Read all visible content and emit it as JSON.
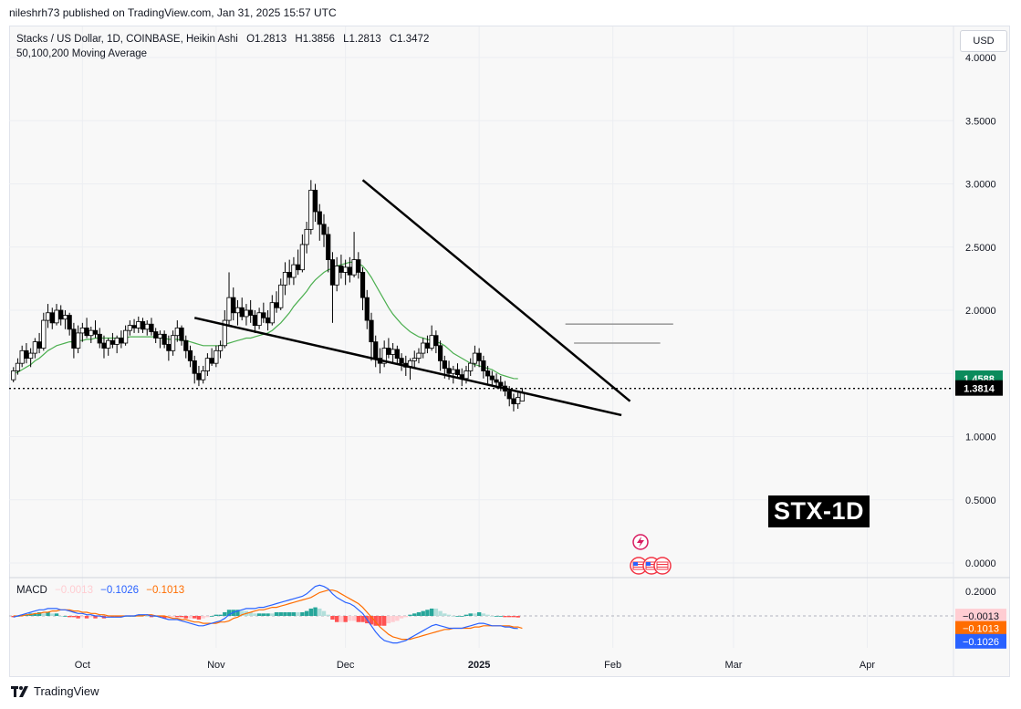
{
  "publisher_line": "nileshrh73 published on TradingView.com, Jan 31, 2025 15:57 UTC",
  "legend": {
    "symbol": "Stacks / US Dollar, 1D, COINBASE, Heikin Ashi",
    "open": "O1.2813",
    "high": "H1.3856",
    "low": "L1.2813",
    "close": "C1.3472",
    "indicator": "50,100,200 Moving Average"
  },
  "currency_button": "USD",
  "badge": "STX-1D",
  "macd_legend": {
    "label": "MACD",
    "hist": "−0.0013",
    "macd": "−0.1026",
    "signal": "−0.1013"
  },
  "footer": "TradingView",
  "colors": {
    "up": "#089981",
    "down": "#f23645",
    "ma": "#4caf50",
    "macd_line": "#2962ff",
    "signal_line": "#ff6d00",
    "hist_up": "#26a69a",
    "hist_up_light": "#b2dfdb",
    "hist_down": "#ff5252",
    "hist_down_light": "#ffcdd2",
    "ma_label": "#0b8b5c"
  },
  "chart_data": {
    "type": "candlestick",
    "title": "Stacks / US Dollar, 1D, COINBASE, Heikin Ashi",
    "price_axis": {
      "ticks": [
        "4.0000",
        "3.5000",
        "3.0000",
        "2.5000",
        "2.0000",
        "1.5000",
        "1.0000",
        "0.5000",
        "0.0000"
      ],
      "tick_values": [
        4.0,
        3.5,
        3.0,
        2.5,
        2.0,
        1.5,
        1.0,
        0.5,
        0.0
      ],
      "range": [
        -0.05,
        4.15
      ],
      "labels": {
        "ma_value": "1.4588",
        "last_price": "1.3814"
      },
      "ma_value": 1.4588,
      "last_price": 1.3814
    },
    "time_axis": {
      "labels": [
        "Oct",
        "Nov",
        "Dec",
        "2025",
        "Feb",
        "Mar",
        "Apr"
      ],
      "label_dates": [
        "2024-10-01",
        "2024-11-01",
        "2024-12-01",
        "2025-01-01",
        "2025-02-01",
        "2025-03-01",
        "2025-04-01"
      ],
      "range": [
        "2024-09-14",
        "2025-04-21"
      ]
    },
    "candles": {
      "start_date": "2024-09-15",
      "values": [
        [
          1.45,
          1.55,
          1.43,
          1.52
        ],
        [
          1.52,
          1.62,
          1.49,
          1.58
        ],
        [
          1.58,
          1.72,
          1.55,
          1.68
        ],
        [
          1.68,
          1.74,
          1.58,
          1.62
        ],
        [
          1.62,
          1.7,
          1.55,
          1.66
        ],
        [
          1.66,
          1.78,
          1.62,
          1.75
        ],
        [
          1.75,
          1.82,
          1.66,
          1.7
        ],
        [
          1.7,
          1.98,
          1.68,
          1.92
        ],
        [
          1.92,
          2.05,
          1.86,
          1.98
        ],
        [
          1.98,
          2.02,
          1.85,
          1.9
        ],
        [
          1.9,
          2.05,
          1.88,
          2.0
        ],
        [
          2.0,
          2.04,
          1.88,
          1.93
        ],
        [
          1.93,
          2.0,
          1.85,
          1.96
        ],
        [
          1.96,
          1.98,
          1.8,
          1.85
        ],
        [
          1.85,
          1.9,
          1.62,
          1.7
        ],
        [
          1.7,
          1.88,
          1.66,
          1.82
        ],
        [
          1.82,
          1.9,
          1.75,
          1.86
        ],
        [
          1.86,
          1.94,
          1.78,
          1.8
        ],
        [
          1.8,
          1.87,
          1.74,
          1.84
        ],
        [
          1.84,
          1.92,
          1.78,
          1.81
        ],
        [
          1.81,
          1.86,
          1.7,
          1.74
        ],
        [
          1.74,
          1.8,
          1.62,
          1.7
        ],
        [
          1.7,
          1.78,
          1.64,
          1.76
        ],
        [
          1.76,
          1.82,
          1.7,
          1.73
        ],
        [
          1.73,
          1.8,
          1.66,
          1.78
        ],
        [
          1.78,
          1.84,
          1.7,
          1.74
        ],
        [
          1.74,
          1.88,
          1.72,
          1.84
        ],
        [
          1.84,
          1.92,
          1.8,
          1.88
        ],
        [
          1.88,
          1.93,
          1.82,
          1.86
        ],
        [
          1.86,
          1.95,
          1.82,
          1.91
        ],
        [
          1.91,
          1.94,
          1.82,
          1.85
        ],
        [
          1.85,
          1.92,
          1.8,
          1.89
        ],
        [
          1.89,
          1.94,
          1.8,
          1.83
        ],
        [
          1.83,
          1.86,
          1.74,
          1.78
        ],
        [
          1.78,
          1.84,
          1.7,
          1.81
        ],
        [
          1.81,
          1.84,
          1.7,
          1.73
        ],
        [
          1.73,
          1.8,
          1.6,
          1.68
        ],
        [
          1.68,
          1.84,
          1.64,
          1.8
        ],
        [
          1.8,
          1.92,
          1.75,
          1.86
        ],
        [
          1.86,
          1.88,
          1.72,
          1.76
        ],
        [
          1.76,
          1.8,
          1.62,
          1.68
        ],
        [
          1.68,
          1.72,
          1.55,
          1.6
        ],
        [
          1.6,
          1.64,
          1.42,
          1.5
        ],
        [
          1.5,
          1.56,
          1.4,
          1.45
        ],
        [
          1.45,
          1.56,
          1.42,
          1.52
        ],
        [
          1.52,
          1.66,
          1.48,
          1.62
        ],
        [
          1.62,
          1.7,
          1.56,
          1.58
        ],
        [
          1.58,
          1.72,
          1.55,
          1.68
        ],
        [
          1.68,
          1.76,
          1.62,
          1.72
        ],
        [
          1.72,
          2.0,
          1.7,
          1.92
        ],
        [
          1.92,
          2.3,
          1.88,
          2.1
        ],
        [
          2.1,
          2.18,
          1.92,
          1.98
        ],
        [
          1.98,
          2.08,
          1.88,
          2.02
        ],
        [
          2.02,
          2.1,
          1.92,
          1.95
        ],
        [
          1.95,
          2.05,
          1.88,
          2.0
        ],
        [
          2.0,
          2.08,
          1.9,
          1.96
        ],
        [
          1.96,
          2.0,
          1.82,
          1.88
        ],
        [
          1.88,
          2.02,
          1.85,
          1.98
        ],
        [
          1.98,
          2.06,
          1.9,
          1.94
        ],
        [
          1.94,
          2.0,
          1.84,
          1.9
        ],
        [
          1.9,
          2.12,
          1.88,
          2.06
        ],
        [
          2.06,
          2.15,
          1.98,
          2.02
        ],
        [
          2.02,
          2.25,
          2.0,
          2.2
        ],
        [
          2.2,
          2.38,
          2.12,
          2.3
        ],
        [
          2.3,
          2.4,
          2.2,
          2.26
        ],
        [
          2.26,
          2.42,
          2.2,
          2.36
        ],
        [
          2.36,
          2.48,
          2.28,
          2.32
        ],
        [
          2.32,
          2.6,
          2.3,
          2.52
        ],
        [
          2.52,
          2.7,
          2.45,
          2.64
        ],
        [
          2.64,
          3.03,
          2.6,
          2.95
        ],
        [
          2.95,
          3.0,
          2.7,
          2.78
        ],
        [
          2.78,
          2.84,
          2.55,
          2.68
        ],
        [
          2.68,
          2.76,
          2.5,
          2.6
        ],
        [
          2.6,
          2.66,
          2.3,
          2.4
        ],
        [
          2.4,
          2.46,
          1.9,
          2.2
        ],
        [
          2.2,
          2.42,
          2.15,
          2.35
        ],
        [
          2.35,
          2.44,
          2.25,
          2.3
        ],
        [
          2.3,
          2.4,
          2.2,
          2.34
        ],
        [
          2.34,
          2.42,
          2.22,
          2.28
        ],
        [
          2.28,
          2.62,
          2.26,
          2.4
        ],
        [
          2.4,
          2.46,
          2.25,
          2.3
        ],
        [
          2.3,
          2.34,
          2.0,
          2.1
        ],
        [
          2.1,
          2.16,
          1.85,
          1.92
        ],
        [
          1.92,
          1.98,
          1.6,
          1.75
        ],
        [
          1.75,
          1.8,
          1.55,
          1.62
        ],
        [
          1.62,
          1.7,
          1.5,
          1.58
        ],
        [
          1.58,
          1.76,
          1.55,
          1.7
        ],
        [
          1.7,
          1.78,
          1.62,
          1.65
        ],
        [
          1.65,
          1.74,
          1.58,
          1.69
        ],
        [
          1.69,
          1.72,
          1.58,
          1.62
        ],
        [
          1.62,
          1.66,
          1.52,
          1.58
        ],
        [
          1.58,
          1.64,
          1.48,
          1.55
        ],
        [
          1.55,
          1.62,
          1.45,
          1.6
        ],
        [
          1.6,
          1.68,
          1.54,
          1.62
        ],
        [
          1.62,
          1.7,
          1.58,
          1.66
        ],
        [
          1.66,
          1.78,
          1.62,
          1.74
        ],
        [
          1.74,
          1.8,
          1.66,
          1.7
        ],
        [
          1.7,
          1.88,
          1.68,
          1.8
        ],
        [
          1.8,
          1.84,
          1.66,
          1.72
        ],
        [
          1.72,
          1.76,
          1.52,
          1.6
        ],
        [
          1.6,
          1.64,
          1.46,
          1.54
        ],
        [
          1.54,
          1.6,
          1.45,
          1.5
        ],
        [
          1.5,
          1.56,
          1.42,
          1.53
        ],
        [
          1.53,
          1.58,
          1.46,
          1.49
        ],
        [
          1.49,
          1.54,
          1.4,
          1.46
        ],
        [
          1.46,
          1.56,
          1.42,
          1.52
        ],
        [
          1.52,
          1.62,
          1.48,
          1.58
        ],
        [
          1.58,
          1.72,
          1.55,
          1.66
        ],
        [
          1.66,
          1.7,
          1.55,
          1.6
        ],
        [
          1.6,
          1.64,
          1.46,
          1.52
        ],
        [
          1.52,
          1.56,
          1.42,
          1.48
        ],
        [
          1.48,
          1.52,
          1.4,
          1.45
        ],
        [
          1.45,
          1.5,
          1.38,
          1.43
        ],
        [
          1.43,
          1.48,
          1.36,
          1.4
        ],
        [
          1.4,
          1.44,
          1.32,
          1.36
        ],
        [
          1.36,
          1.4,
          1.24,
          1.3
        ],
        [
          1.3,
          1.34,
          1.2,
          1.26
        ],
        [
          1.26,
          1.35,
          1.22,
          1.31
        ],
        [
          1.2813,
          1.3856,
          1.2813,
          1.3472
        ]
      ]
    },
    "moving_average": {
      "name": "50,100,200 Moving Average",
      "start_date": "2024-09-15",
      "values": [
        1.5,
        1.51,
        1.53,
        1.55,
        1.57,
        1.6,
        1.62,
        1.65,
        1.68,
        1.7,
        1.72,
        1.73,
        1.74,
        1.75,
        1.75,
        1.76,
        1.76,
        1.77,
        1.77,
        1.78,
        1.78,
        1.78,
        1.78,
        1.78,
        1.78,
        1.78,
        1.78,
        1.79,
        1.79,
        1.79,
        1.79,
        1.79,
        1.79,
        1.79,
        1.78,
        1.78,
        1.77,
        1.77,
        1.77,
        1.76,
        1.76,
        1.75,
        1.74,
        1.73,
        1.72,
        1.72,
        1.72,
        1.72,
        1.72,
        1.73,
        1.74,
        1.75,
        1.76,
        1.77,
        1.78,
        1.78,
        1.79,
        1.8,
        1.81,
        1.82,
        1.84,
        1.87,
        1.9,
        1.94,
        1.98,
        2.03,
        2.07,
        2.11,
        2.15,
        2.2,
        2.24,
        2.27,
        2.3,
        2.32,
        2.33,
        2.35,
        2.36,
        2.37,
        2.38,
        2.38,
        2.37,
        2.35,
        2.31,
        2.26,
        2.2,
        2.14,
        2.08,
        2.02,
        1.97,
        1.93,
        1.89,
        1.86,
        1.83,
        1.81,
        1.79,
        1.78,
        1.77,
        1.76,
        1.75,
        1.74,
        1.72,
        1.69,
        1.66,
        1.64,
        1.62,
        1.6,
        1.58,
        1.57,
        1.56,
        1.55,
        1.54,
        1.53,
        1.51,
        1.49,
        1.48,
        1.47,
        1.46,
        1.4588
      ]
    },
    "trendlines": [
      {
        "label": "upper wedge line",
        "from": [
          "2024-12-05",
          3.03
        ],
        "to": [
          "2025-02-05",
          1.28
        ]
      },
      {
        "label": "lower wedge line",
        "from": [
          "2024-10-27",
          1.94
        ],
        "to": [
          "2025-02-03",
          1.17
        ]
      }
    ],
    "horizontal_levels": [
      {
        "from": "2025-01-21",
        "to": "2025-02-15",
        "value": 1.89
      },
      {
        "from": "2025-01-23",
        "to": "2025-02-12",
        "value": 1.74
      }
    ],
    "macd": {
      "label": "MACD",
      "axis_ticks": [
        "0.2000"
      ],
      "axis_range": [
        -0.26,
        0.26
      ],
      "labels": {
        "hist": "−0.0013",
        "signal": "−0.1013",
        "macd": "−0.1026"
      },
      "start_date": "2024-09-15",
      "macd_line": [
        -0.01,
        0.0,
        0.01,
        0.02,
        0.03,
        0.04,
        0.05,
        0.05,
        0.06,
        0.06,
        0.06,
        0.05,
        0.05,
        0.04,
        0.03,
        0.02,
        0.02,
        0.01,
        0.01,
        0.0,
        0.0,
        -0.01,
        -0.01,
        -0.01,
        -0.01,
        -0.01,
        0.0,
        0.0,
        0.0,
        0.01,
        0.01,
        0.01,
        0.0,
        0.0,
        -0.01,
        -0.02,
        -0.03,
        -0.03,
        -0.03,
        -0.04,
        -0.05,
        -0.06,
        -0.07,
        -0.08,
        -0.08,
        -0.07,
        -0.06,
        -0.05,
        -0.04,
        -0.02,
        0.01,
        0.03,
        0.04,
        0.05,
        0.06,
        0.06,
        0.06,
        0.07,
        0.07,
        0.08,
        0.09,
        0.1,
        0.11,
        0.12,
        0.13,
        0.14,
        0.15,
        0.16,
        0.18,
        0.21,
        0.24,
        0.25,
        0.24,
        0.22,
        0.18,
        0.15,
        0.13,
        0.11,
        0.1,
        0.08,
        0.05,
        0.02,
        -0.03,
        -0.08,
        -0.13,
        -0.17,
        -0.2,
        -0.21,
        -0.22,
        -0.22,
        -0.21,
        -0.2,
        -0.18,
        -0.16,
        -0.14,
        -0.12,
        -0.1,
        -0.08,
        -0.07,
        -0.08,
        -0.09,
        -0.1,
        -0.1,
        -0.1,
        -0.1,
        -0.09,
        -0.08,
        -0.07,
        -0.06,
        -0.06,
        -0.07,
        -0.08,
        -0.08,
        -0.08,
        -0.09,
        -0.09,
        -0.1,
        -0.1026
      ],
      "signal_line": [
        0.0,
        0.0,
        0.0,
        0.01,
        0.01,
        0.02,
        0.02,
        0.03,
        0.03,
        0.04,
        0.04,
        0.05,
        0.05,
        0.05,
        0.04,
        0.04,
        0.03,
        0.03,
        0.02,
        0.02,
        0.01,
        0.01,
        0.0,
        0.0,
        0.0,
        0.0,
        0.0,
        0.0,
        0.0,
        0.0,
        0.0,
        0.01,
        0.01,
        0.0,
        0.0,
        0.0,
        -0.01,
        -0.02,
        -0.02,
        -0.03,
        -0.03,
        -0.04,
        -0.05,
        -0.05,
        -0.06,
        -0.06,
        -0.06,
        -0.06,
        -0.05,
        -0.05,
        -0.04,
        -0.02,
        -0.01,
        0.01,
        0.02,
        0.03,
        0.04,
        0.05,
        0.05,
        0.06,
        0.07,
        0.07,
        0.08,
        0.09,
        0.1,
        0.11,
        0.12,
        0.13,
        0.14,
        0.15,
        0.17,
        0.19,
        0.2,
        0.21,
        0.21,
        0.2,
        0.18,
        0.16,
        0.14,
        0.12,
        0.1,
        0.07,
        0.03,
        -0.01,
        -0.05,
        -0.09,
        -0.12,
        -0.15,
        -0.17,
        -0.18,
        -0.19,
        -0.19,
        -0.19,
        -0.18,
        -0.17,
        -0.16,
        -0.15,
        -0.14,
        -0.13,
        -0.12,
        -0.11,
        -0.11,
        -0.1,
        -0.1,
        -0.1,
        -0.1,
        -0.1,
        -0.09,
        -0.09,
        -0.08,
        -0.08,
        -0.08,
        -0.08,
        -0.08,
        -0.08,
        -0.08,
        -0.09,
        -0.09,
        -0.1013
      ]
    }
  }
}
